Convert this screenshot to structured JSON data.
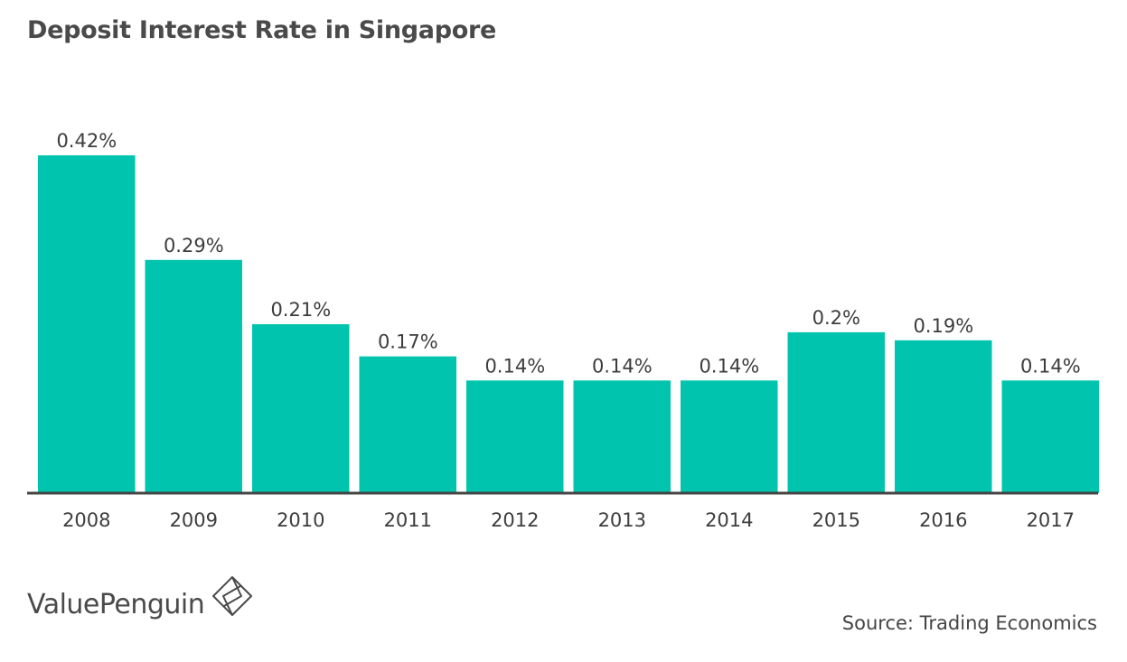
{
  "chart_data": {
    "type": "bar",
    "title": "Deposit Interest Rate in Singapore",
    "categories": [
      "2008",
      "2009",
      "2010",
      "2011",
      "2012",
      "2013",
      "2014",
      "2015",
      "2016",
      "2017"
    ],
    "values": [
      0.42,
      0.29,
      0.21,
      0.17,
      0.14,
      0.14,
      0.14,
      0.2,
      0.19,
      0.14
    ],
    "data_labels": [
      "0.42%",
      "0.29%",
      "0.21%",
      "0.17%",
      "0.14%",
      "0.14%",
      "0.14%",
      "0.2%",
      "0.19%",
      "0.14%"
    ],
    "ylim": [
      0,
      0.42
    ],
    "grid": false,
    "bar_color": "#00c4ad",
    "axis_color": "#444444"
  },
  "branding": {
    "logo_text": "ValuePenguin",
    "logo_icon": "valuepenguin-diamond-icon"
  },
  "source": "Source: Trading Economics"
}
